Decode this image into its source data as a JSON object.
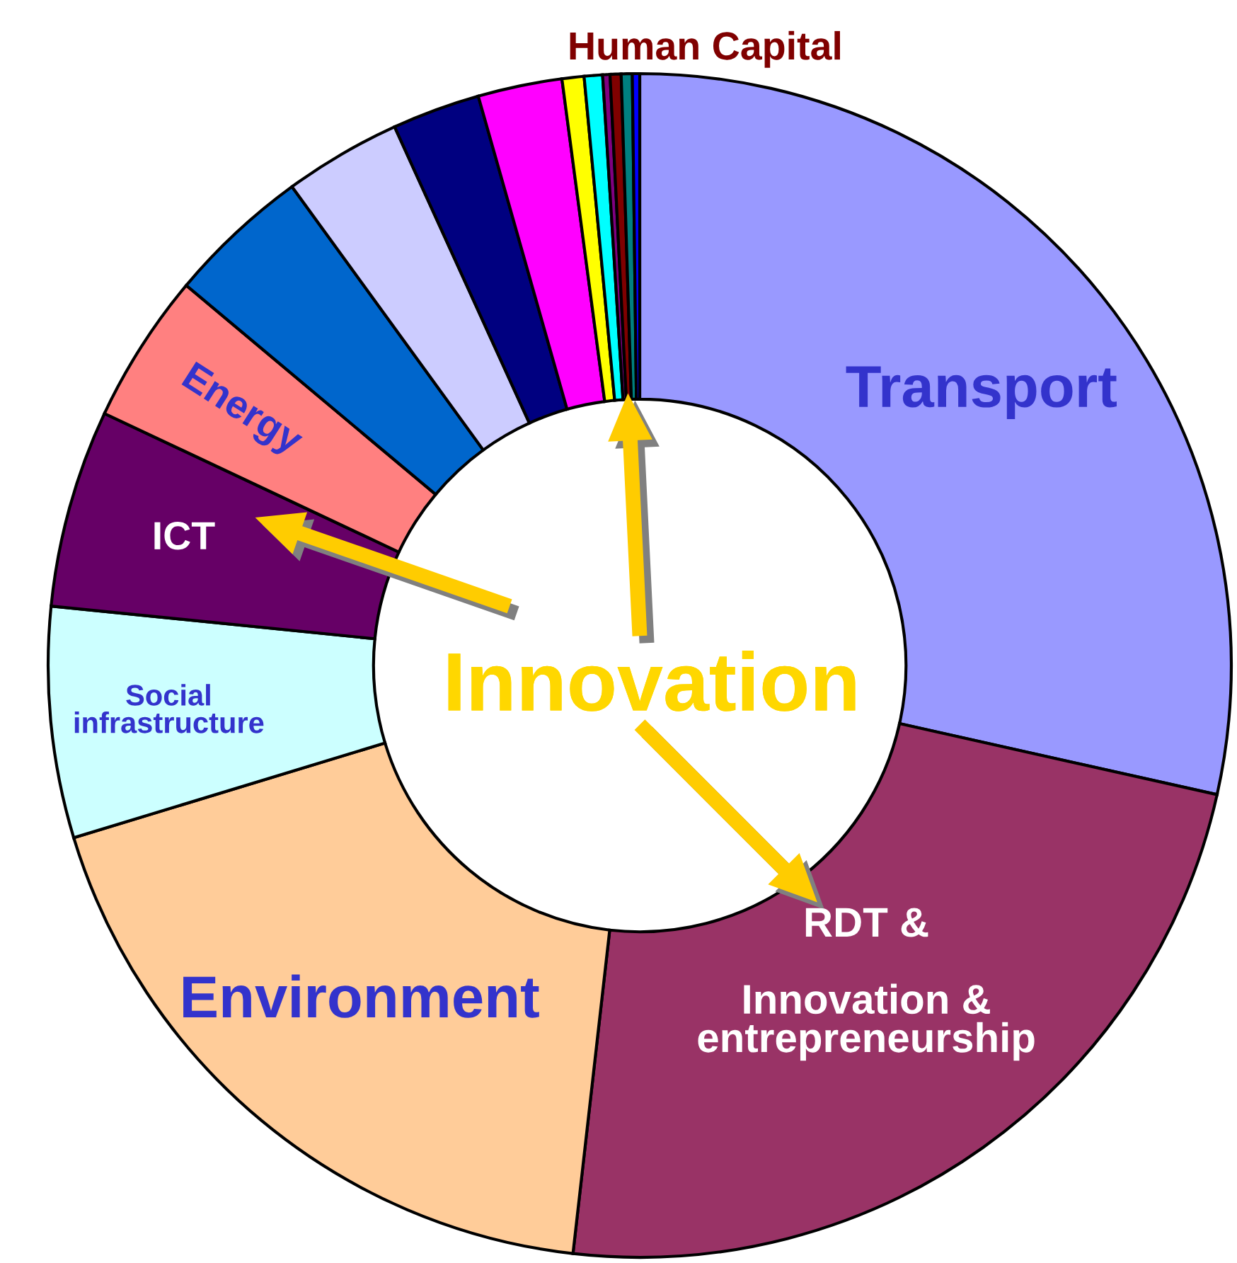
{
  "chart_data": {
    "type": "donut",
    "categories": [
      "Transport",
      "RDT &\n\nInnovation &\nentrepreneurship",
      "Environment",
      "Social\ninfrastructure",
      "ICT",
      "Energy",
      null,
      null,
      null,
      null,
      null,
      null,
      null,
      "Human Capital",
      null,
      null
    ],
    "values": [
      28.5,
      23.3,
      18.5,
      6.3,
      5.4,
      4.1,
      3.9,
      3.2,
      2.4,
      2.3,
      0.6,
      0.5,
      0.2,
      0.3,
      0.3,
      0.2
    ],
    "colors": [
      "#9999ff",
      "#993366",
      "#ffcc99",
      "#ccffff",
      "#660066",
      "#ff8080",
      "#0066cc",
      "#ccccff",
      "#000080",
      "#ff00ff",
      "#ffff00",
      "#00ffff",
      "#800080",
      "#800000",
      "#008080",
      "#0000ff"
    ],
    "annotations": [
      "Innovation"
    ],
    "legend": false
  }
}
